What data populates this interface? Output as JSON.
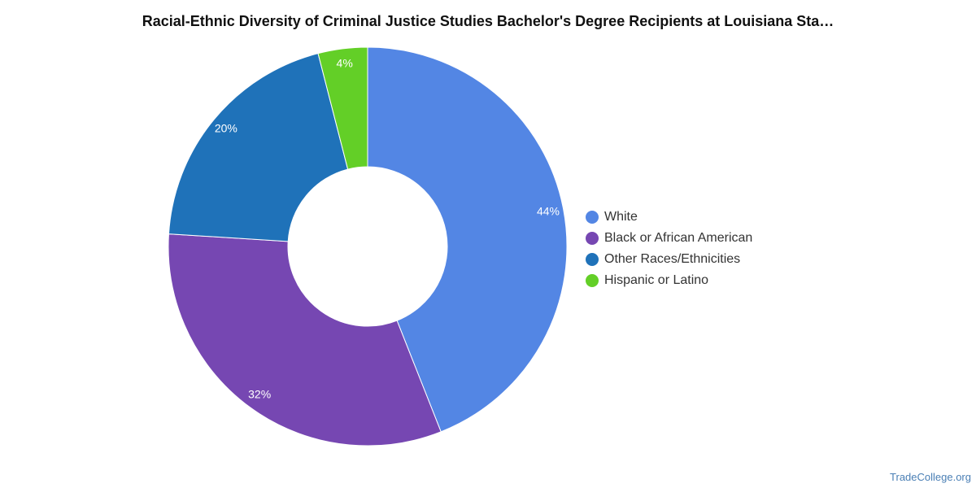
{
  "chart_data": {
    "type": "pie",
    "title": "Racial-Ethnic Diversity of Criminal Justice Studies Bachelor's Degree Recipients at Louisiana Sta…",
    "donut": true,
    "legend_position": "right",
    "slices": [
      {
        "name": "White",
        "value": 44,
        "label": "44%",
        "color": "#5386e4"
      },
      {
        "name": "Black or African American",
        "value": 32,
        "label": "32%",
        "color": "#7647b2"
      },
      {
        "name": "Other Races/Ethnicities",
        "value": 20,
        "label": "20%",
        "color": "#1f72b9"
      },
      {
        "name": "Hispanic or Latino",
        "value": 4,
        "label": "4%",
        "color": "#63cf27"
      }
    ]
  },
  "footer": {
    "source": "TradeCollege.org"
  }
}
